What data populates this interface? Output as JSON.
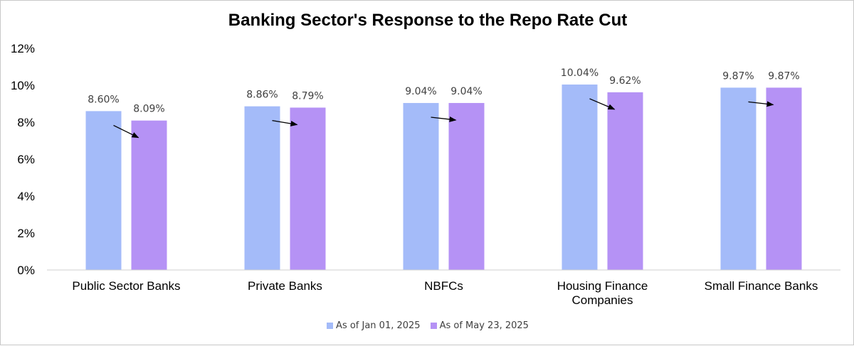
{
  "chart_data": {
    "type": "bar",
    "title": "Banking Sector's Response to the Repo Rate Cut",
    "categories": [
      [
        "Public Sector Banks"
      ],
      [
        "Private Banks"
      ],
      [
        "NBFCs"
      ],
      [
        "Housing Finance",
        "Companies"
      ],
      [
        "Small Finance Banks"
      ]
    ],
    "series": [
      {
        "name": "As of Jan 01, 2025",
        "color": "#a4bbf9",
        "values": [
          8.6,
          8.86,
          9.04,
          10.04,
          9.87
        ],
        "labels": [
          "8.60%",
          "8.86%",
          "9.04%",
          "10.04%",
          "9.87%"
        ]
      },
      {
        "name": "As of May 23, 2025",
        "color": "#b592f5",
        "values": [
          8.09,
          8.79,
          9.04,
          9.62,
          9.87
        ],
        "labels": [
          "8.09%",
          "8.79%",
          "9.04%",
          "9.62%",
          "9.87%"
        ]
      }
    ],
    "ylim": [
      0,
      12
    ],
    "yticks": [
      0,
      2,
      4,
      6,
      8,
      10,
      12
    ],
    "ytick_labels": [
      "0%",
      "2%",
      "4%",
      "6%",
      "8%",
      "10%",
      "12%"
    ],
    "arrow_annotations": true,
    "grid": false,
    "legend_position": "bottom"
  }
}
